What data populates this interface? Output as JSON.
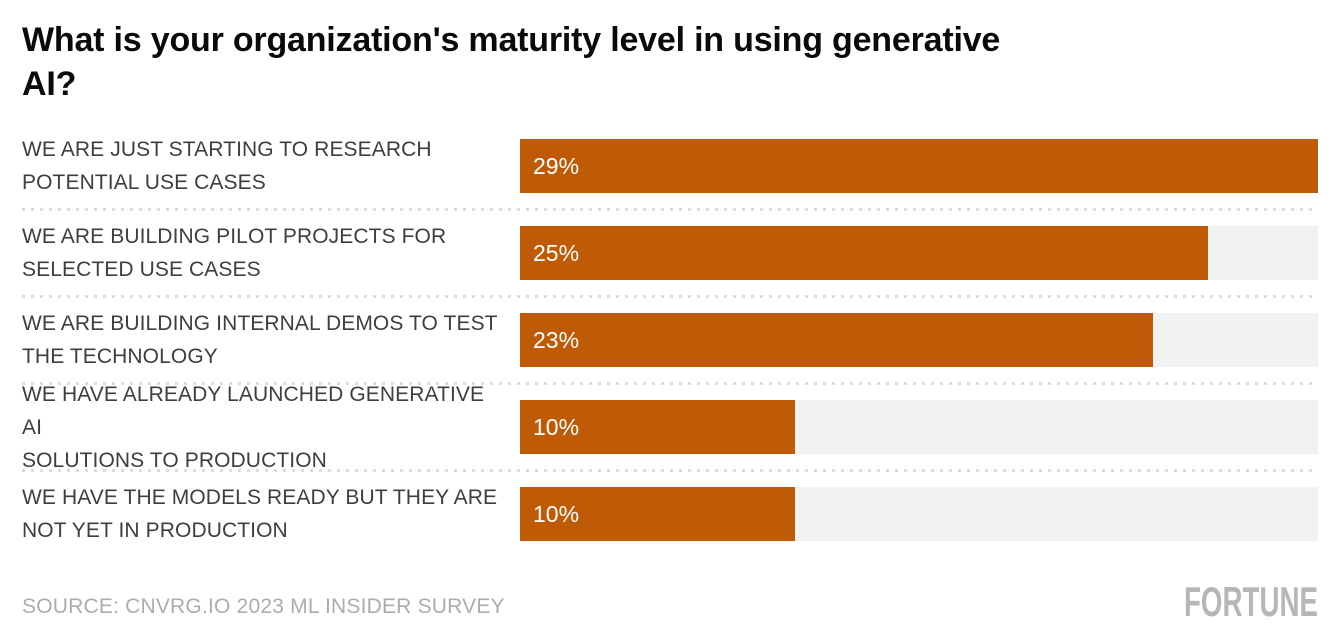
{
  "title": "What is your organization's maturity level in using generative\nAI?",
  "source": "SOURCE: CNVRG.IO 2023 ML INSIDER SURVEY",
  "brand": "FORTUNE",
  "colors": {
    "bar": "#bf5b06",
    "track": "#f2f2f2",
    "title_text": "#0a0a0a",
    "category_text": "#3e3e3e",
    "muted_text": "#acacac",
    "divider": "#dcdcdc",
    "value_text": "#ffffff"
  },
  "chart_data": {
    "type": "bar",
    "orientation": "horizontal",
    "title": "What is your organization's maturity level in using generative AI?",
    "categories": [
      "WE ARE JUST STARTING TO RESEARCH\nPOTENTIAL USE CASES",
      "WE ARE BUILDING PILOT PROJECTS FOR\nSELECTED USE CASES",
      "WE ARE BUILDING INTERNAL DEMOS TO TEST\nTHE TECHNOLOGY",
      "WE HAVE ALREADY LAUNCHED GENERATIVE AI\nSOLUTIONS TO PRODUCTION",
      "WE HAVE THE MODELS READY BUT THEY ARE\nNOT YET IN PRODUCTION"
    ],
    "values": [
      29,
      25,
      23,
      10,
      10
    ],
    "value_labels": [
      "29%",
      "25%",
      "23%",
      "10%",
      "10%"
    ],
    "xlabel": "",
    "ylabel": "",
    "xlim": [
      0,
      29
    ],
    "grid": false,
    "legend": false,
    "bar_scale_note": "bars scaled so the max value (29%) fills the full track width"
  }
}
